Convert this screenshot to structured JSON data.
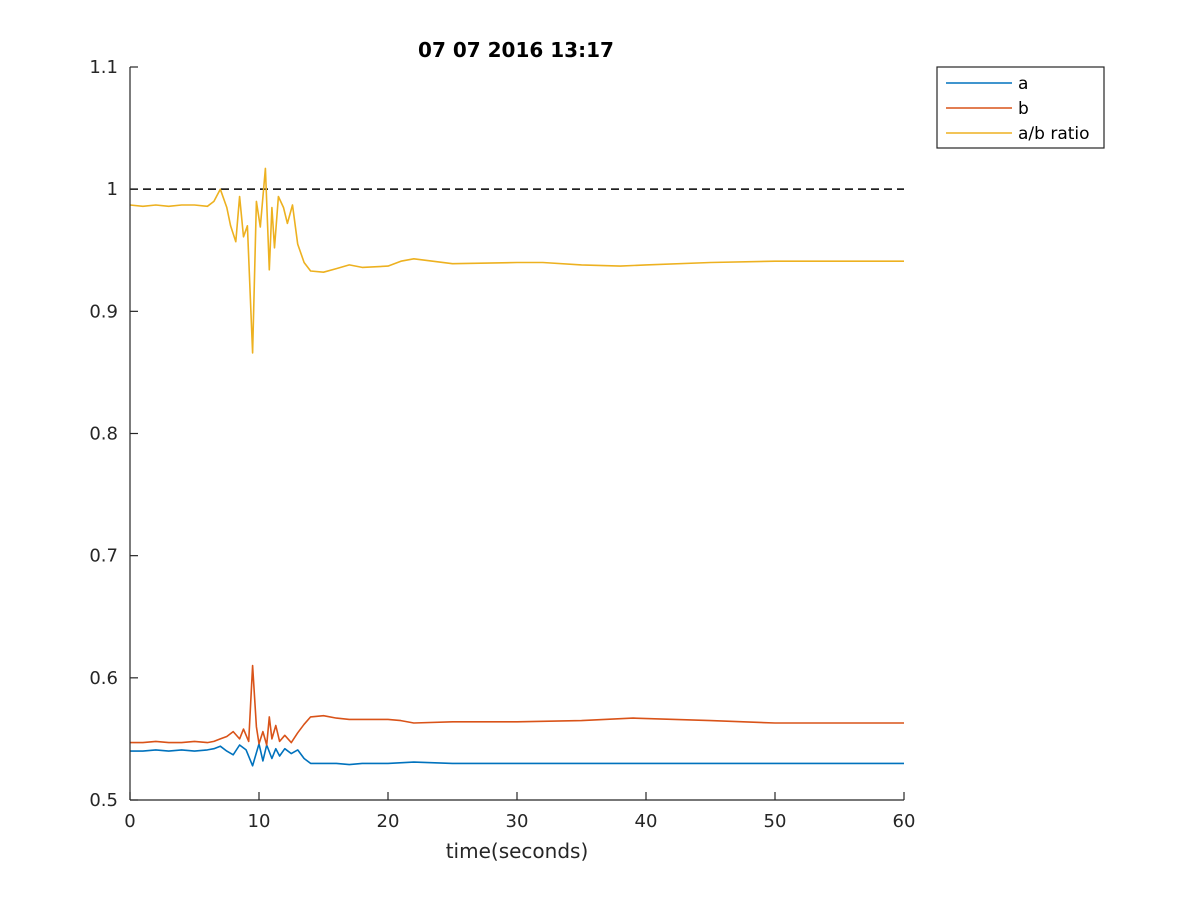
{
  "chart_data": {
    "type": "line",
    "title": "07 07 2016 13:17",
    "xlabel": "time(seconds)",
    "ylabel": "",
    "xlim": [
      0,
      60
    ],
    "ylim": [
      0.5,
      1.1
    ],
    "xticks": [
      0,
      10,
      20,
      30,
      40,
      50,
      60
    ],
    "xtick_labels": [
      "0",
      "10",
      "20",
      "30",
      "40",
      "50",
      "60"
    ],
    "yticks": [
      0.5,
      0.6,
      0.7,
      0.8,
      0.9,
      1,
      1.1
    ],
    "ytick_labels": [
      "0.5",
      "0.6",
      "0.7",
      "0.8",
      "0.9",
      "1",
      "1.1"
    ],
    "grid": false,
    "legend_position": "outside-top-right",
    "reference_line": {
      "y": 1,
      "style": "dashed",
      "color": "#000000"
    },
    "series": [
      {
        "name": "a",
        "color": "#0072BD",
        "x": [
          0,
          1,
          2,
          3,
          4,
          5,
          6,
          6.5,
          7,
          7.5,
          8,
          8.5,
          9,
          9.5,
          10,
          10.3,
          10.6,
          11,
          11.3,
          11.6,
          12,
          12.5,
          13,
          13.5,
          14,
          15,
          16,
          17,
          18,
          20,
          22,
          25,
          30,
          35,
          40,
          45,
          50,
          55,
          60
        ],
        "y": [
          0.54,
          0.54,
          0.541,
          0.54,
          0.541,
          0.54,
          0.541,
          0.542,
          0.544,
          0.54,
          0.537,
          0.545,
          0.541,
          0.528,
          0.546,
          0.532,
          0.545,
          0.534,
          0.542,
          0.536,
          0.542,
          0.538,
          0.541,
          0.534,
          0.53,
          0.53,
          0.53,
          0.529,
          0.53,
          0.53,
          0.531,
          0.53,
          0.53,
          0.53,
          0.53,
          0.53,
          0.53,
          0.53,
          0.53
        ]
      },
      {
        "name": "b",
        "color": "#D95319",
        "x": [
          0,
          1,
          2,
          3,
          4,
          5,
          6,
          6.5,
          7,
          7.5,
          8,
          8.5,
          8.8,
          9.2,
          9.5,
          9.8,
          10,
          10.3,
          10.6,
          10.8,
          11,
          11.3,
          11.6,
          12,
          12.5,
          13,
          13.5,
          14,
          15,
          16,
          17,
          18,
          20,
          21,
          22,
          25,
          30,
          35,
          39,
          45,
          50,
          55,
          60
        ],
        "y": [
          0.547,
          0.547,
          0.548,
          0.547,
          0.547,
          0.548,
          0.547,
          0.548,
          0.55,
          0.552,
          0.556,
          0.55,
          0.558,
          0.548,
          0.61,
          0.56,
          0.546,
          0.556,
          0.545,
          0.568,
          0.55,
          0.561,
          0.548,
          0.553,
          0.547,
          0.555,
          0.562,
          0.568,
          0.569,
          0.567,
          0.566,
          0.566,
          0.566,
          0.565,
          0.563,
          0.564,
          0.564,
          0.565,
          0.567,
          0.565,
          0.563,
          0.563,
          0.563
        ]
      },
      {
        "name": "a/b ratio",
        "color": "#EDB120",
        "x": [
          0,
          1,
          2,
          3,
          4,
          5,
          6,
          6.5,
          7,
          7.5,
          7.8,
          8.2,
          8.5,
          8.8,
          9.1,
          9.5,
          9.8,
          10.1,
          10.5,
          10.8,
          11,
          11.2,
          11.5,
          11.9,
          12.2,
          12.6,
          13,
          13.5,
          14,
          15,
          16,
          17,
          18,
          20,
          21,
          22,
          25,
          30,
          32,
          35,
          38,
          40,
          45,
          50,
          55,
          60
        ],
        "y": [
          0.987,
          0.986,
          0.987,
          0.986,
          0.987,
          0.987,
          0.986,
          0.99,
          1.0,
          0.985,
          0.97,
          0.957,
          0.994,
          0.961,
          0.97,
          0.866,
          0.99,
          0.969,
          1.017,
          0.934,
          0.985,
          0.952,
          0.994,
          0.985,
          0.972,
          0.987,
          0.955,
          0.94,
          0.933,
          0.932,
          0.935,
          0.938,
          0.936,
          0.937,
          0.941,
          0.943,
          0.939,
          0.94,
          0.94,
          0.938,
          0.937,
          0.938,
          0.94,
          0.941,
          0.941,
          0.941
        ]
      }
    ]
  }
}
